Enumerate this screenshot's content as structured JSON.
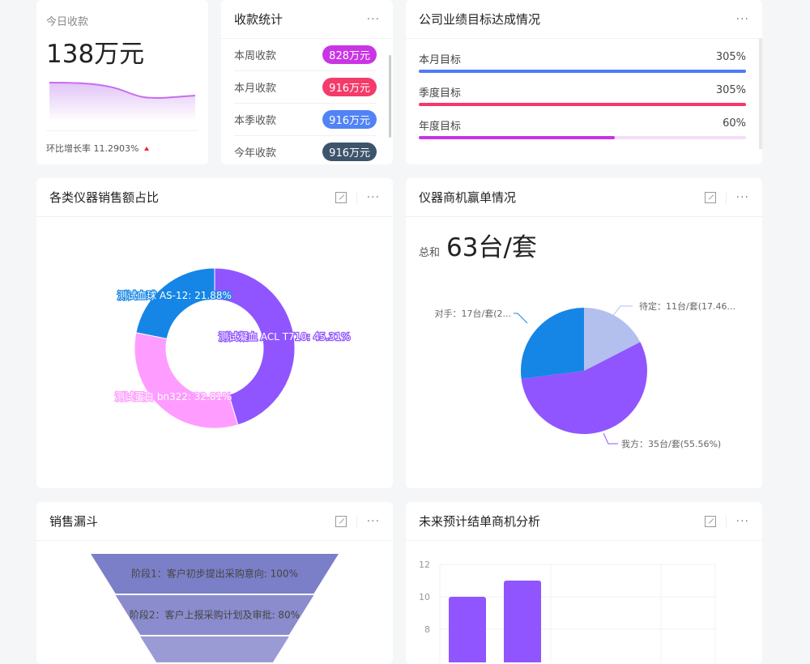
{
  "today": {
    "label": "今日收款",
    "value": "138万元",
    "growth": "环比增长率 11.2903%",
    "trend_icon": "triangle-up-icon"
  },
  "receipts": {
    "title": "收款统计",
    "items": [
      {
        "label": "本周收款",
        "value": "828万元",
        "color": "#c935e5"
      },
      {
        "label": "本月收款",
        "value": "916万元",
        "color": "#f43b6a"
      },
      {
        "label": "本季收款",
        "value": "916万元",
        "color": "#5183f5"
      },
      {
        "label": "今年收款",
        "value": "916万元",
        "color": "#3d546b"
      }
    ]
  },
  "goals": {
    "title": "公司业绩目标达成情况",
    "items": [
      {
        "label": "本月目标",
        "value": "305%",
        "percent": 305,
        "color": "#4e7cf6",
        "track": "#e6edfd"
      },
      {
        "label": "季度目标",
        "value": "305%",
        "percent": 305,
        "color": "#f5376b",
        "track": "#fde3ea"
      },
      {
        "label": "年度目标",
        "value": "60%",
        "percent": 60,
        "color": "#c634e6",
        "track": "#f7dcfa"
      }
    ]
  },
  "donut": {
    "title": "各类仪器销售额占比"
  },
  "pie": {
    "title": "仪器商机赢单情况",
    "total_label": "总和",
    "total_value": "63台/套"
  },
  "funnel": {
    "title": "销售漏斗"
  },
  "bars": {
    "title": "未来预计结单商机分析"
  },
  "chart_data": [
    {
      "type": "pie",
      "variant": "donut",
      "slices": [
        {
          "name": "测试凝血 ACL T710",
          "percent": 45.31,
          "label": "测试凝血 ACL T710: 45.31%",
          "color": "#9055ff"
        },
        {
          "name": "测试蛋白 bn322",
          "percent": 32.81,
          "label": "测试蛋白 bn322: 32.81%",
          "color": "#ff9cff"
        },
        {
          "name": "测试血球 AS-12",
          "percent": 21.88,
          "label": "测试血球 AS-12: 21.88%",
          "color": "#1586e6"
        }
      ]
    },
    {
      "type": "pie",
      "slices": [
        {
          "name": "待定",
          "value": 11,
          "label": "待定：11台/套(17.46...",
          "color": "#b3c0ee"
        },
        {
          "name": "我方",
          "value": 35,
          "label": "我方：35台/套(55.56%)",
          "color": "#9055ff"
        },
        {
          "name": "对手",
          "value": 17,
          "label": "对手：17台/套(2...",
          "color": "#1586e6"
        }
      ]
    },
    {
      "type": "funnel",
      "stages": [
        {
          "label": "阶段1：客户初步提出采购意向: 100%",
          "value": 100,
          "color": "#7b7fc7"
        },
        {
          "label": "阶段2：客户上报采购计划及审批: 80%",
          "value": 80,
          "color": "#8a8ccd"
        },
        {
          "label": "",
          "value": 60,
          "color": "#9a9bd5"
        }
      ]
    },
    {
      "type": "bar",
      "values": [
        10,
        11
      ],
      "color": "#9055ff",
      "yticks": [
        "12",
        "10",
        "8"
      ],
      "ylim_visible": [
        8,
        12
      ],
      "grid": true
    }
  ]
}
